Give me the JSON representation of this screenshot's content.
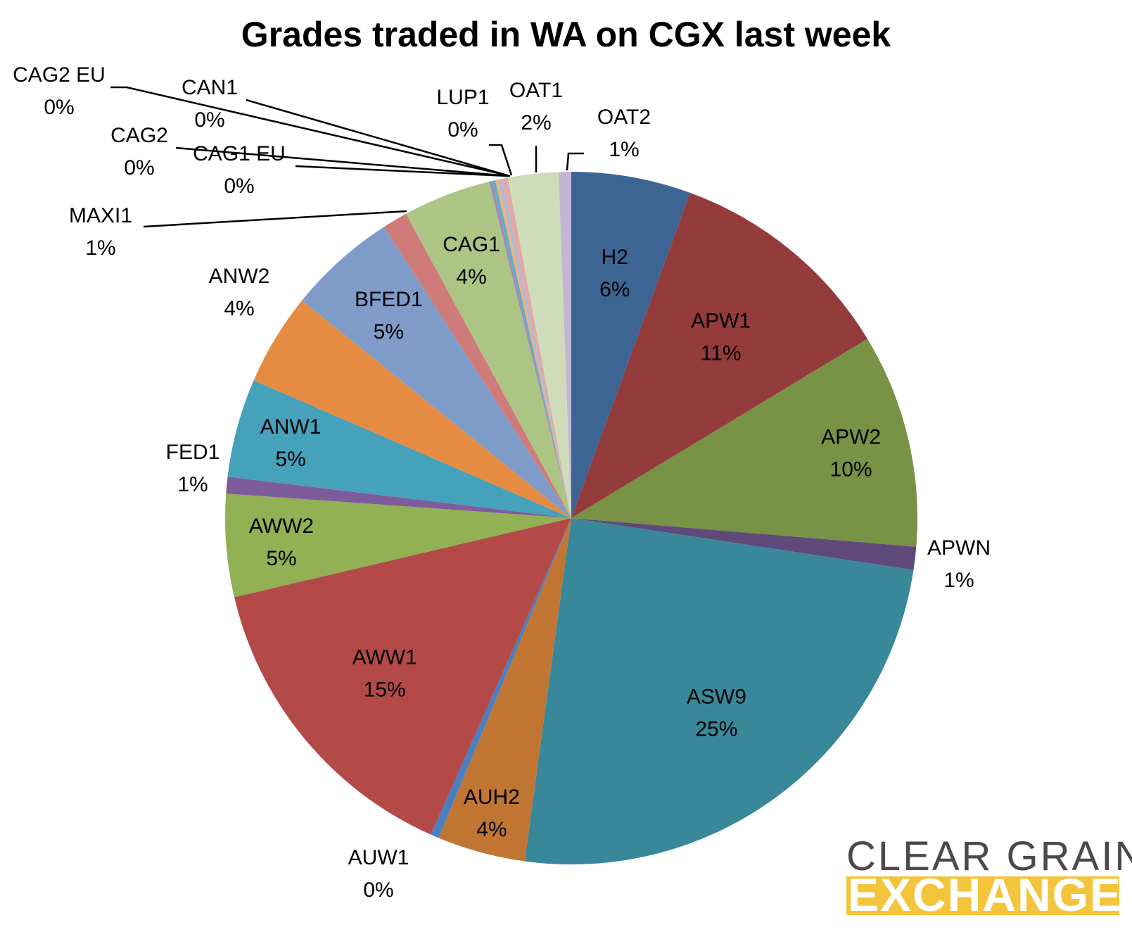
{
  "chart_data": {
    "type": "pie",
    "title": "Grades traded in WA on CGX last week",
    "slices": [
      {
        "label": "H2",
        "value": 5.7,
        "pct_label": "6%",
        "color": "#3C6594"
      },
      {
        "label": "APW1",
        "value": 11.0,
        "pct_label": "11%",
        "color": "#943B3B"
      },
      {
        "label": "APW2",
        "value": 10.2,
        "pct_label": "10%",
        "color": "#789246"
      },
      {
        "label": "APWN",
        "value": 1.1,
        "pct_label": "1%",
        "color": "#5F4A7B"
      },
      {
        "label": "ASW9",
        "value": 25.3,
        "pct_label": "25%",
        "color": "#398899"
      },
      {
        "label": "AUH2",
        "value": 4.2,
        "pct_label": "4%",
        "color": "#C17533"
      },
      {
        "label": "AUW1",
        "value": 0.4,
        "pct_label": "0%",
        "color": "#4A7FC1"
      },
      {
        "label": "AWW1",
        "value": 15.0,
        "pct_label": "15%",
        "color": "#B34A48"
      },
      {
        "label": "AWW2",
        "value": 4.9,
        "pct_label": "5%",
        "color": "#92B054"
      },
      {
        "label": "FED1",
        "value": 0.8,
        "pct_label": "1%",
        "color": "#7E5C9C"
      },
      {
        "label": "ANW1",
        "value": 4.7,
        "pct_label": "5%",
        "color": "#46A1BA"
      },
      {
        "label": "ANW2",
        "value": 4.4,
        "pct_label": "4%",
        "color": "#E68C42"
      },
      {
        "label": "BFED1",
        "value": 5.2,
        "pct_label": "5%",
        "color": "#7F9CC9"
      },
      {
        "label": "MAXI1",
        "value": 1.2,
        "pct_label": "1%",
        "color": "#CE7B7A"
      },
      {
        "label": "CAG1",
        "value": 4.2,
        "pct_label": "4%",
        "color": "#ADC584"
      },
      {
        "label": "CAG1 EU",
        "value": 0.15,
        "pct_label": "0%",
        "color": "#9E8DB3"
      },
      {
        "label": "CAG2",
        "value": 0.15,
        "pct_label": "0%",
        "color": "#5DADC9"
      },
      {
        "label": "CAN1",
        "value": 0.15,
        "pct_label": "0%",
        "color": "#F0B07C"
      },
      {
        "label": "CAG2 EU",
        "value": 0.15,
        "pct_label": "0%",
        "color": "#A6BBDB"
      },
      {
        "label": "LUP1",
        "value": 0.3,
        "pct_label": "0%",
        "color": "#DFAAA9"
      },
      {
        "label": "OAT1",
        "value": 2.4,
        "pct_label": "2%",
        "color": "#CFDCB9"
      },
      {
        "label": "OAT2",
        "value": 0.6,
        "pct_label": "1%",
        "color": "#C3B6D4"
      }
    ]
  },
  "logo": {
    "line1": "CLEAR GRAIN",
    "line2": "EXCHANGE",
    "line1_color": "#4a4a4a",
    "line2_color": "#F2C53D"
  }
}
